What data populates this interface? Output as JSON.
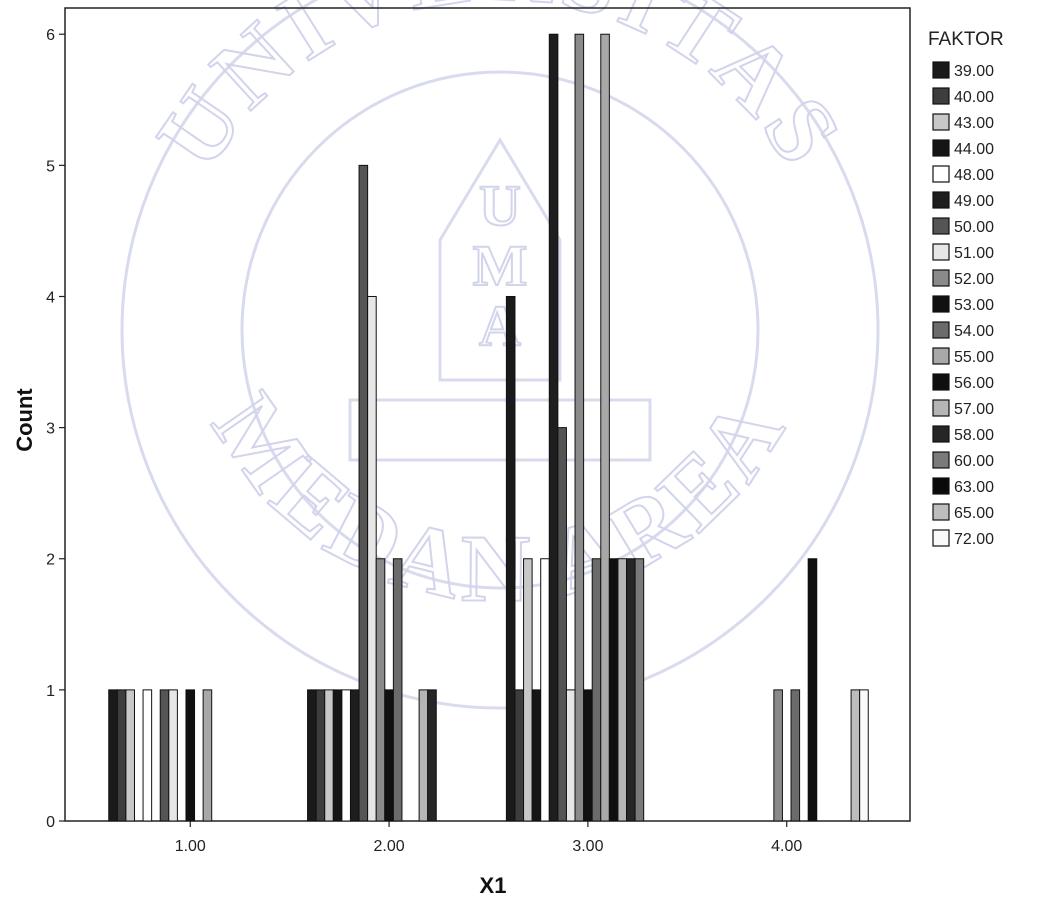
{
  "chart_data": {
    "type": "bar",
    "xlabel": "X1",
    "ylabel": "Count",
    "title": "",
    "xlim": [
      0.37,
      4.62
    ],
    "ylim": [
      0,
      6.2
    ],
    "xticks": [
      "1.00",
      "2.00",
      "3.00",
      "4.00"
    ],
    "yticks": [
      "0",
      "1",
      "2",
      "3",
      "4",
      "5",
      "6"
    ],
    "grid": false,
    "legend": {
      "title": "FAKTOR",
      "placement": "right"
    },
    "categories": [
      "1.00",
      "2.00",
      "3.00",
      "4.00"
    ],
    "series": [
      {
        "name": "39.00",
        "color": "#1a1a1a",
        "values": [
          1,
          1,
          4,
          0
        ]
      },
      {
        "name": "40.00",
        "color": "#3d3d3d",
        "values": [
          1,
          1,
          1,
          0
        ]
      },
      {
        "name": "43.00",
        "color": "#c8c8c8",
        "values": [
          1,
          1,
          2,
          0
        ]
      },
      {
        "name": "44.00",
        "color": "#151515",
        "values": [
          0,
          1,
          1,
          0
        ]
      },
      {
        "name": "48.00",
        "color": "#ffffff",
        "values": [
          1,
          1,
          2,
          0
        ]
      },
      {
        "name": "49.00",
        "color": "#1e1e1e",
        "values": [
          0,
          1,
          6,
          0
        ]
      },
      {
        "name": "50.00",
        "color": "#555555",
        "values": [
          1,
          5,
          3,
          0
        ]
      },
      {
        "name": "51.00",
        "color": "#e6e6e6",
        "values": [
          1,
          4,
          1,
          0
        ]
      },
      {
        "name": "52.00",
        "color": "#8a8a8a",
        "values": [
          0,
          2,
          6,
          1
        ]
      },
      {
        "name": "53.00",
        "color": "#111111",
        "values": [
          1,
          1,
          1,
          0
        ]
      },
      {
        "name": "54.00",
        "color": "#6b6b6b",
        "values": [
          0,
          2,
          2,
          1
        ]
      },
      {
        "name": "55.00",
        "color": "#a8a8a8",
        "values": [
          1,
          0,
          6,
          0
        ]
      },
      {
        "name": "56.00",
        "color": "#0f0f0f",
        "values": [
          0,
          0,
          2,
          2
        ]
      },
      {
        "name": "57.00",
        "color": "#b5b5b5",
        "values": [
          0,
          1,
          2,
          0
        ]
      },
      {
        "name": "58.00",
        "color": "#262626",
        "values": [
          0,
          1,
          2,
          0
        ]
      },
      {
        "name": "60.00",
        "color": "#7a7a7a",
        "values": [
          0,
          0,
          2,
          0
        ]
      },
      {
        "name": "63.00",
        "color": "#0a0a0a",
        "values": [
          0,
          0,
          0,
          0
        ]
      },
      {
        "name": "65.00",
        "color": "#bdbdbd",
        "values": [
          0,
          0,
          0,
          1
        ]
      },
      {
        "name": "72.00",
        "color": "#fafafa",
        "values": [
          0,
          0,
          0,
          1
        ]
      }
    ]
  },
  "watermark": {
    "top_text": "UNIVERSITAS",
    "bottom_text": "MEDAN AREA",
    "letters": [
      "U",
      "M",
      "A"
    ]
  }
}
